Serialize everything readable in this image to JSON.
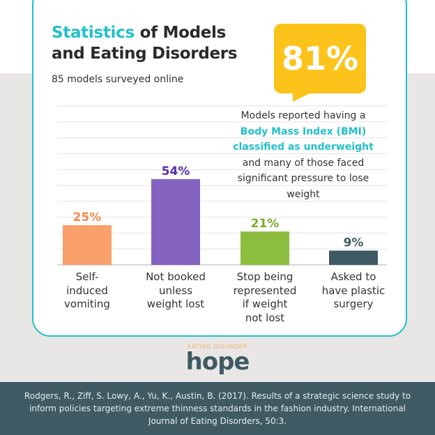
{
  "header": {
    "title_accent": "Statistics",
    "title_rest": " of Models",
    "title_line2": "and Eating Disorders",
    "subtitle": "85 models surveyed online"
  },
  "highlight": {
    "value": "81%",
    "text_before": "Models reported having a",
    "text_highlight1": "Body Mass Index (BMI)",
    "text_highlight2": "classified as underweight",
    "text_after": "and many of those faced significant pressure to lose weight",
    "bubble_color": "#fcc31b",
    "accent_color": "#22bfcc"
  },
  "chart_data": {
    "type": "bar",
    "categories": [
      "Self-induced vomiting",
      "Not booked unless weight lost",
      "Stop being represented if weight not lost",
      "Asked to have plastic surgery"
    ],
    "category_lines": [
      [
        "Self-",
        "induced",
        "vomiting"
      ],
      [
        "Not booked",
        "unless",
        "weight lost"
      ],
      [
        "Stop being",
        "represented",
        "if weight",
        "not lost"
      ],
      [
        "Asked to",
        "have plastic",
        "surgery"
      ]
    ],
    "values": [
      25,
      54,
      21,
      9
    ],
    "data_labels": [
      "25%",
      "54%",
      "21%",
      "9%"
    ],
    "colors": [
      "#f9a06b",
      "#8463c0",
      "#8cbd3f",
      "#3f5a62"
    ],
    "label_colors": [
      "#f58a4b",
      "#5b2fb0",
      "#7aad2b",
      "#3f5a62"
    ],
    "ylim": [
      0,
      100
    ],
    "grid": true
  },
  "logo": {
    "top": "EATING DISORDER",
    "main": "hope"
  },
  "footer": {
    "citation": "Rodgers, R., Ziff, S. Lowy, A., Yu, K., Austin, B. (2017). Results of a strategic science study to inform policies targeting extreme thinness standards in the fashion industry. International Journal of Eating Disorders, 50:3."
  }
}
